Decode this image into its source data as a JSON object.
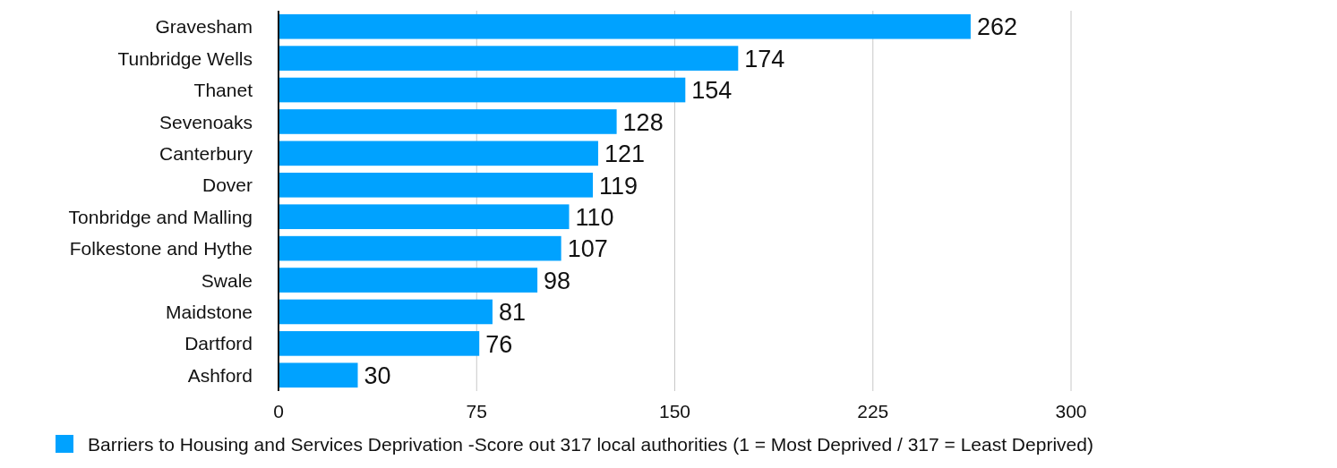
{
  "chart_data": {
    "type": "bar",
    "orientation": "horizontal",
    "categories": [
      "Gravesham",
      "Tunbridge Wells",
      "Thanet",
      "Sevenoaks",
      "Canterbury",
      "Dover",
      "Tonbridge and Malling",
      "Folkestone and Hythe",
      "Swale",
      "Maidstone",
      "Dartford",
      "Ashford"
    ],
    "series": [
      {
        "name": "Barriers to Housing and Services Deprivation -Score out 317 local authorities (1 = Most Deprived / 317 = Least Deprived)",
        "color": "#00a2ff",
        "values": [
          262,
          174,
          154,
          128,
          121,
          119,
          110,
          107,
          98,
          81,
          76,
          30
        ]
      }
    ],
    "xlim": [
      0,
      300
    ],
    "xticks": [
      0,
      75,
      150,
      225,
      300
    ],
    "grid": "x",
    "legend": "bottom",
    "data_labels": true
  }
}
